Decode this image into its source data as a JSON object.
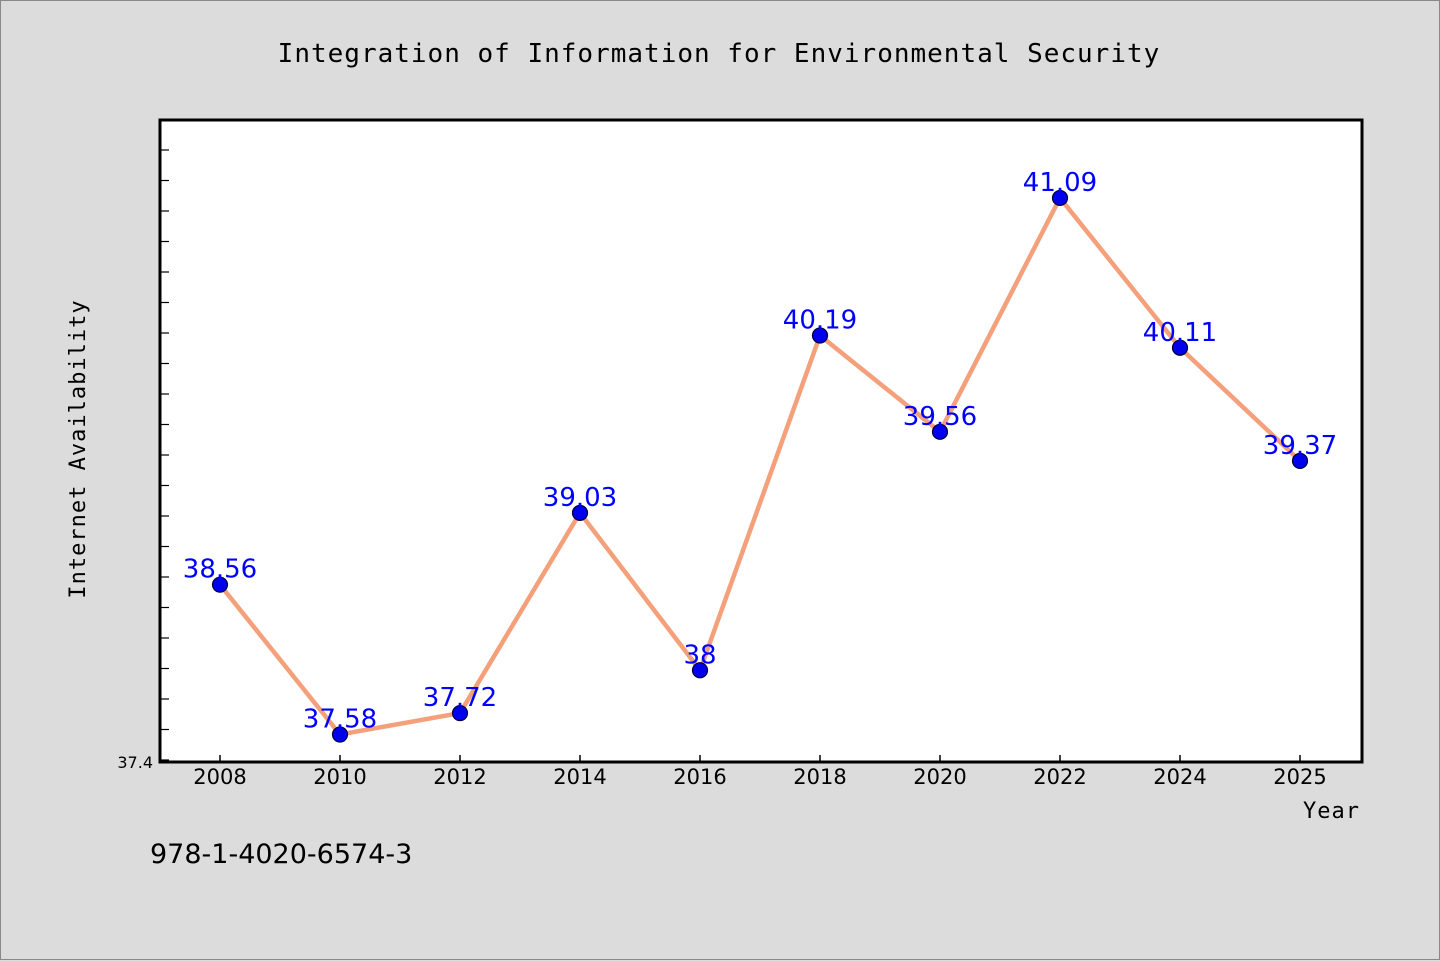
{
  "chart_data": {
    "type": "line",
    "title": "Integration of Information for Environmental Security",
    "xlabel": "Year",
    "ylabel": "Internet Availability",
    "x": [
      "2008",
      "2010",
      "2012",
      "2014",
      "2016",
      "2018",
      "2020",
      "2022",
      "2024",
      "2025"
    ],
    "series": [
      {
        "values": [
          38.56,
          37.58,
          37.72,
          39.03,
          38,
          40.19,
          39.56,
          41.09,
          40.11,
          39.37
        ],
        "data_labels": [
          "38.56",
          "37.58",
          "37.72",
          "39.03",
          "38",
          "40.19",
          "39.56",
          "41.09",
          "40.11",
          "39.37"
        ]
      }
    ],
    "ylim": [
      37.4,
      41.6
    ],
    "y_tick_labels": [
      "37.4"
    ],
    "grid": false,
    "colors": {
      "line": "#f4a07a",
      "marker": "#0000ee",
      "data_label": "#0000ff",
      "plot_background": "#ffffff",
      "page_background": "#dcdcdc"
    }
  },
  "footer": {
    "isbn": "978-1-4020-6574-3"
  }
}
